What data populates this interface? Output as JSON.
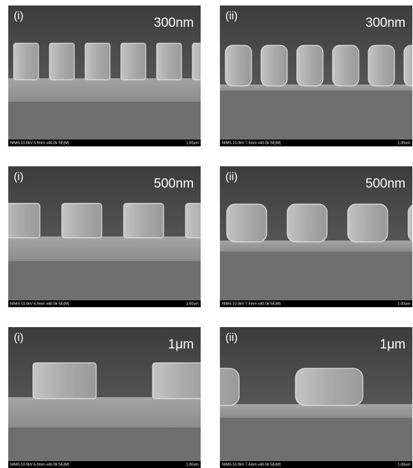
{
  "panels": [
    {
      "label": "(i)",
      "size": "300nm",
      "footer": "NIMS 10.0kV 6.9mm x40.0k SE(M)",
      "scale": "1.00um"
    },
    {
      "label": "(ii)",
      "size": "300nm",
      "footer": "NIMS 10.0kV 7.6mm x40.0k SE(M)",
      "scale": "1.00um"
    },
    {
      "label": "(i)",
      "size": "500nm",
      "footer": "NIMS 10.0kV 6.9mm x40.0k SE(M)",
      "scale": "1.00um"
    },
    {
      "label": "(ii)",
      "size": "500nm",
      "footer": "NIMS 10.0kV 7.6mm x40.0k SE(M)",
      "scale": "1.00um"
    },
    {
      "label": "(i)",
      "size": "1μm",
      "footer": "NIMS 10.0kV 6.9mm x40.0k SE(M)",
      "scale": "1.00um"
    },
    {
      "label": "(ii)",
      "size": "1μm",
      "footer": "NIMS 10.0kV 7.6mm x40.0k SE(M)",
      "scale": "1.00um"
    }
  ]
}
